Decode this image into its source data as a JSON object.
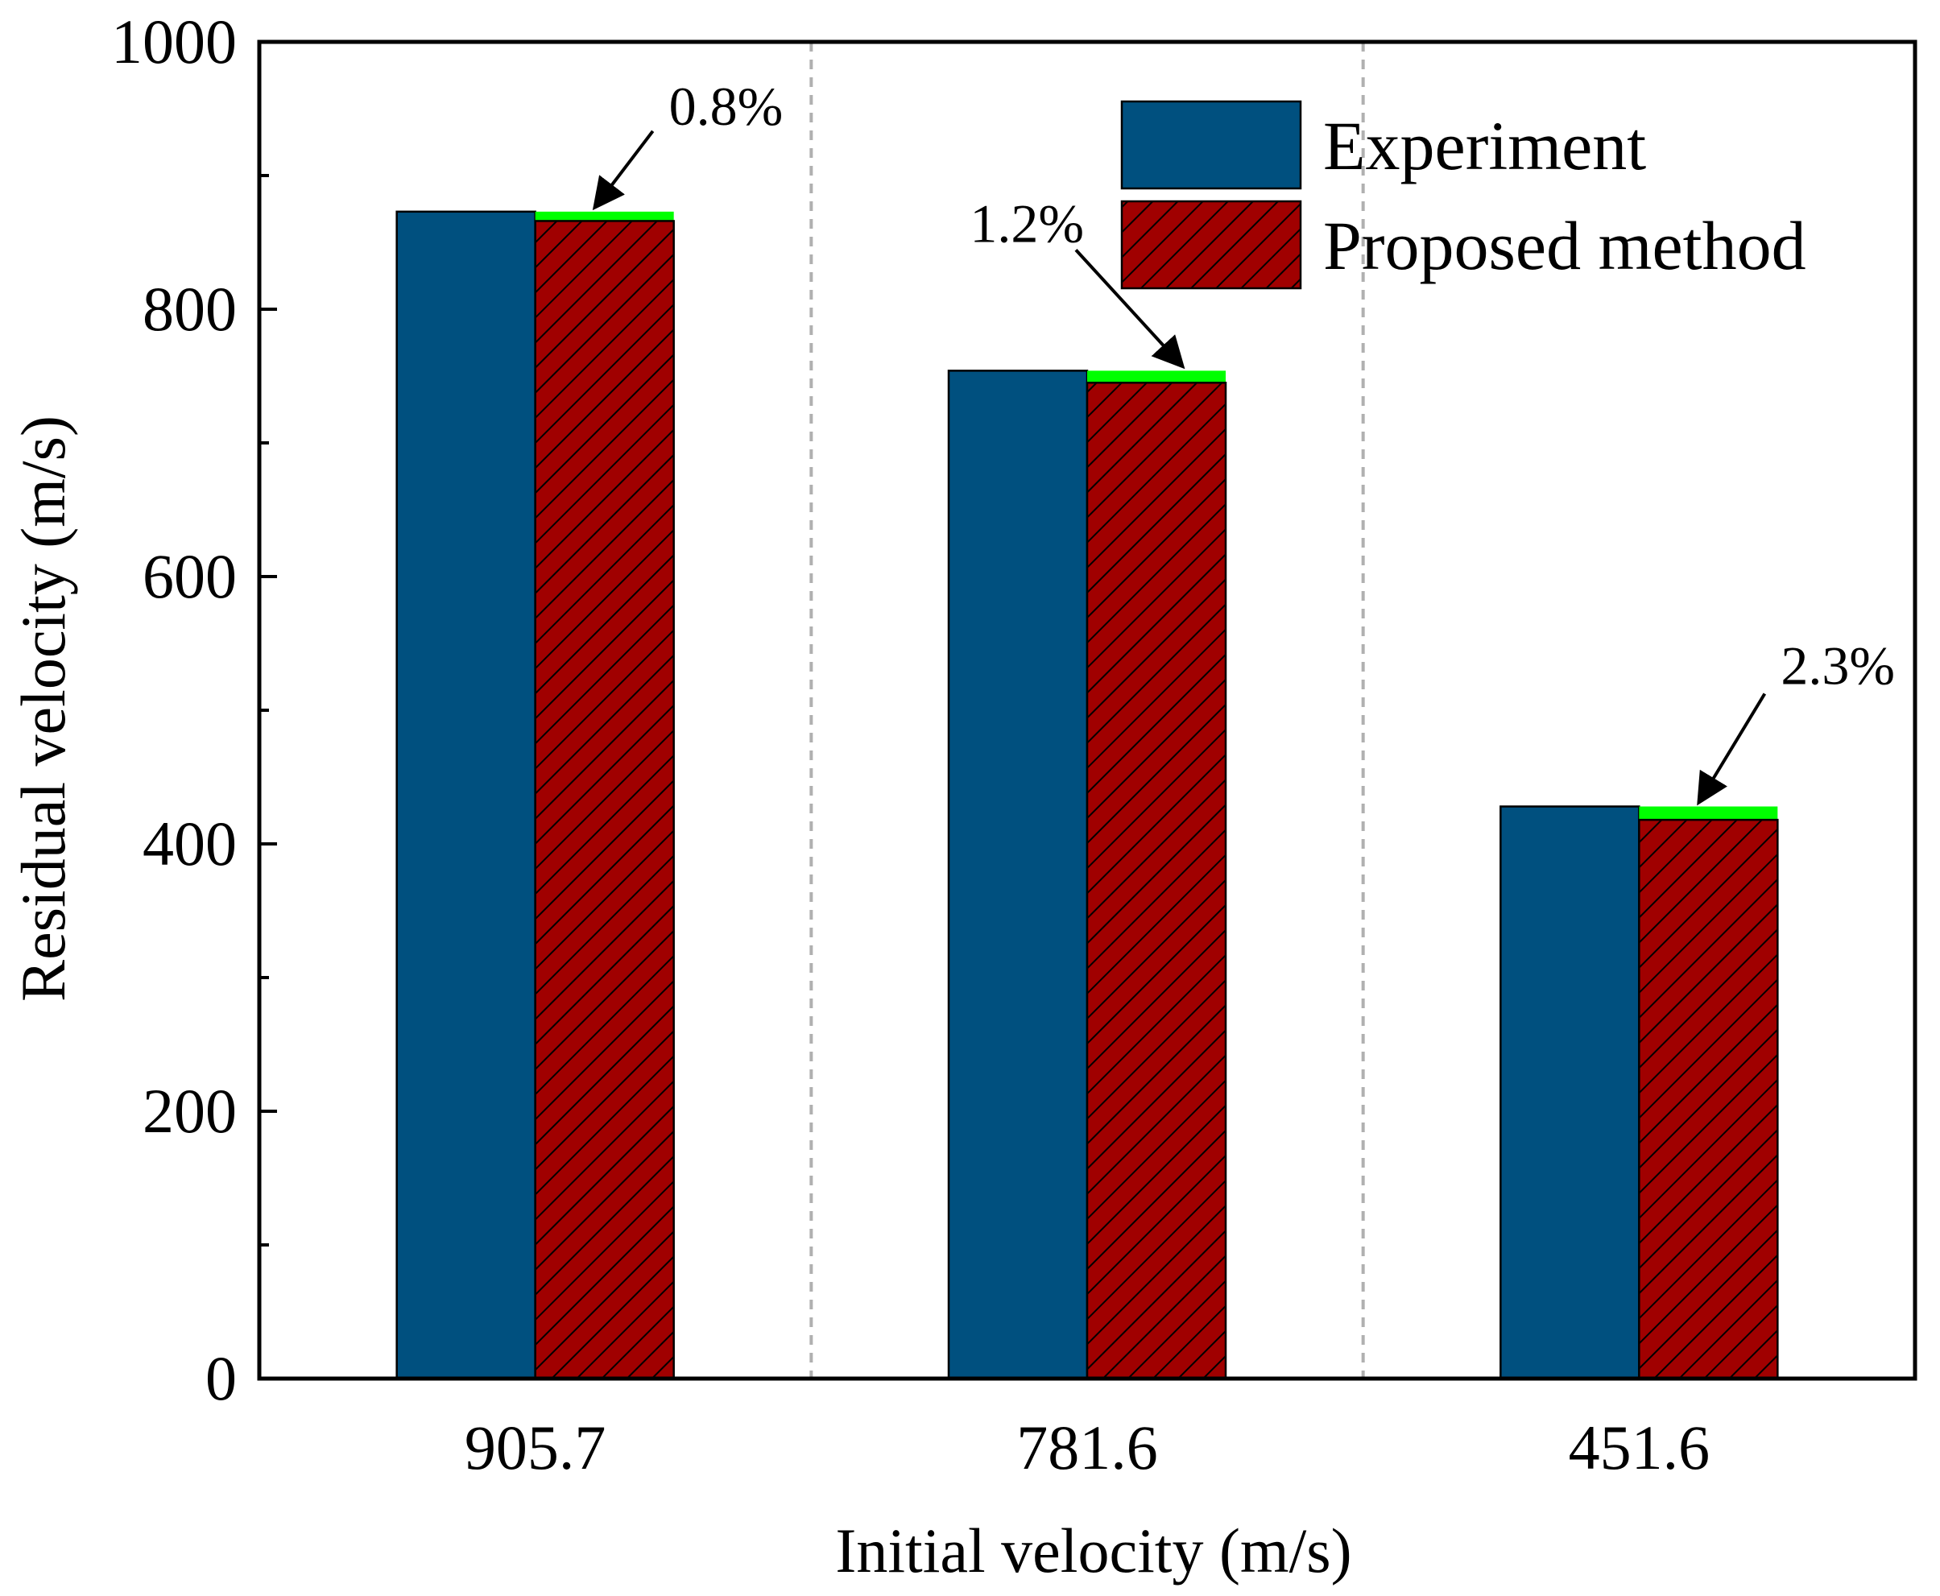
{
  "chart_data": {
    "type": "bar",
    "title": "",
    "xlabel": "Initial velocity (m/s)",
    "ylabel": "Residual velocity (m/s)",
    "ylim": [
      0,
      1000
    ],
    "yticks": [
      0,
      200,
      400,
      600,
      800,
      1000
    ],
    "yticks_minor": [
      100,
      300,
      500,
      700,
      900
    ],
    "categories": [
      "905.7",
      "781.6",
      "451.6"
    ],
    "series": [
      {
        "name": "Experiment",
        "values": [
          873,
          754,
          428
        ],
        "color": "#00507f",
        "pattern": "solid"
      },
      {
        "name": "Proposed method",
        "values": [
          866,
          745,
          418
        ],
        "color": "#a00000",
        "pattern": "hatched"
      }
    ],
    "error_band_color": "#00ff00",
    "annotations": [
      {
        "text": "0.8%",
        "category_index": 0
      },
      {
        "text": "1.2%",
        "category_index": 1
      },
      {
        "text": "2.3%",
        "category_index": 2
      }
    ],
    "grid": false,
    "category_separators": true,
    "legend_position": "top-right"
  }
}
